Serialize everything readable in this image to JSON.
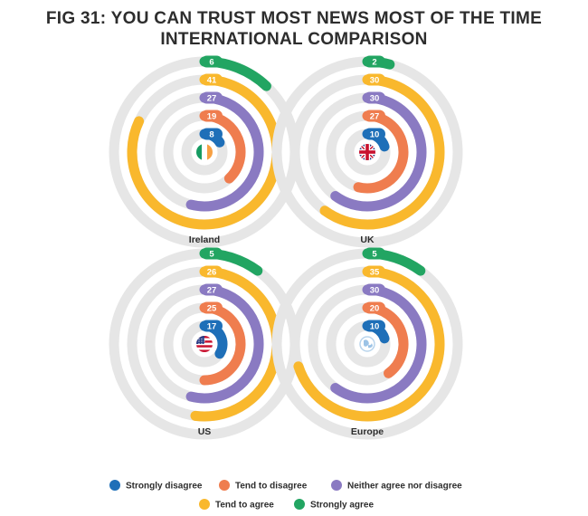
{
  "title_line1": "FIG 31: YOU CAN TRUST MOST NEWS MOST OF THE TIME",
  "title_line2": "INTERNATIONAL COMPARISON",
  "chart_data": {
    "type": "radial-bar",
    "categories": [
      "Strongly disagree",
      "Tend to disagree",
      "Neither agree nor disagree",
      "Tend to agree",
      "Strongly agree"
    ],
    "colors": [
      "#1e6fb8",
      "#ef7d4f",
      "#8a7ac2",
      "#f9b82d",
      "#22a562"
    ],
    "track_color": "#e6e6e6",
    "unit": "%",
    "panels": [
      {
        "name": "Ireland",
        "flag": "ireland-flag",
        "values": [
          8,
          19,
          27,
          41,
          6
        ]
      },
      {
        "name": "UK",
        "flag": "uk-flag",
        "values": [
          10,
          27,
          30,
          30,
          2
        ]
      },
      {
        "name": "US",
        "flag": "us-flag",
        "values": [
          17,
          25,
          27,
          26,
          5
        ]
      },
      {
        "name": "Europe",
        "flag": "europe-flag",
        "values": [
          10,
          20,
          30,
          35,
          5
        ]
      }
    ]
  }
}
